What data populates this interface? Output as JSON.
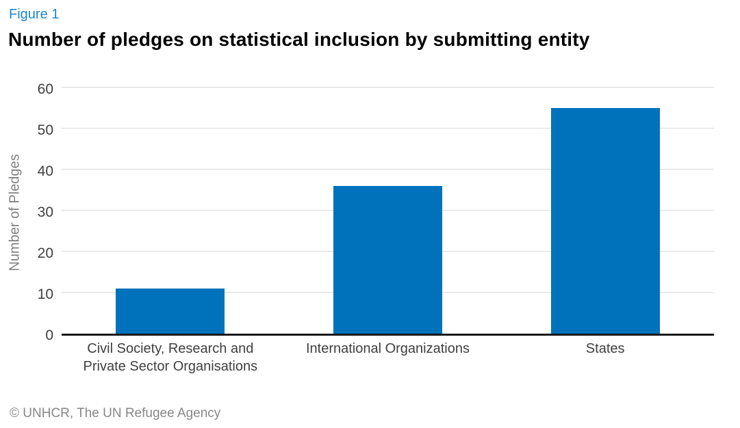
{
  "figure_label": "Figure 1",
  "title": "Number of pledges on statistical inclusion by submitting entity",
  "footer": "© UNHCR, The UN Refugee Agency",
  "colors": {
    "figure_label": "#1B85D6",
    "bar": "#0072BC",
    "gridline": "#D9D9D9",
    "axis_line": "#1A1A1A",
    "tick_label": "#3F3F3F",
    "category_label": "#3F3F3F",
    "axis_title": "#7F7F7F",
    "footer_text": "#878787"
  },
  "chart_data": {
    "type": "bar",
    "title": "Number of pledges on statistical inclusion by submitting entity",
    "categories": [
      "Civil Society, Research and\nPrivate Sector Organisations",
      "International Organizations",
      "States"
    ],
    "values": [
      11,
      36,
      55
    ],
    "xlabel": "",
    "ylabel": "Number of Pledges",
    "ylim": [
      0,
      60
    ],
    "yticks": [
      0,
      10,
      20,
      30,
      40,
      50,
      60
    ],
    "grid": true,
    "legend": false,
    "bar_color": "#0072BC"
  }
}
